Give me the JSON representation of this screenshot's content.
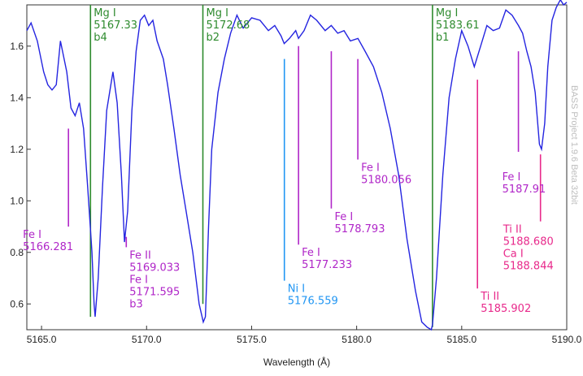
{
  "chart_data": {
    "type": "line",
    "xlabel": "Wavelength (Å)",
    "ylabel": "",
    "xlim": [
      5164.3,
      5190.0
    ],
    "ylim": [
      0.5,
      1.76
    ],
    "xticks": [
      5165.0,
      5170.0,
      5175.0,
      5180.0,
      5185.0,
      5190.0
    ],
    "xtick_labels": [
      "5165.0",
      "5170.0",
      "5175.0",
      "5180.0",
      "5185.0",
      "5190.0"
    ],
    "yticks": [
      0.6,
      0.8,
      1.0,
      1.2,
      1.4,
      1.6
    ],
    "ytick_labels": [
      "0.6",
      "0.8",
      "1.0",
      "1.2",
      "1.4",
      "1.6"
    ],
    "grid": false,
    "line_color": "#2424e0",
    "series": [
      {
        "x": [
          5164.3,
          5164.5,
          5164.8,
          5165.1,
          5165.3,
          5165.5,
          5165.7,
          5165.9,
          5166.2,
          5166.4,
          5166.6,
          5166.8,
          5167.0,
          5167.2,
          5167.4,
          5167.5,
          5167.55,
          5167.7,
          5167.9,
          5168.1,
          5168.4,
          5168.6,
          5168.8,
          5168.95,
          5169.1,
          5169.3,
          5169.5,
          5169.7,
          5169.9,
          5170.1,
          5170.3,
          5170.5,
          5170.8,
          5171.0,
          5171.3,
          5171.6,
          5171.9,
          5172.2,
          5172.5,
          5172.7,
          5172.8,
          5172.95,
          5173.1,
          5173.4,
          5173.7,
          5174.0,
          5174.3,
          5174.6,
          5175.0,
          5175.4,
          5175.8,
          5176.1,
          5176.4,
          5176.55,
          5176.8,
          5177.1,
          5177.23,
          5177.5,
          5177.8,
          5178.1,
          5178.5,
          5178.79,
          5179.1,
          5179.4,
          5179.7,
          5180.06,
          5180.4,
          5180.8,
          5181.2,
          5181.6,
          5182.0,
          5182.4,
          5182.8,
          5183.1,
          5183.35,
          5183.55,
          5183.61,
          5183.8,
          5184.1,
          5184.4,
          5184.7,
          5185.0,
          5185.3,
          5185.6,
          5185.9,
          5186.2,
          5186.5,
          5186.8,
          5187.1,
          5187.4,
          5187.7,
          5187.9,
          5188.1,
          5188.3,
          5188.5,
          5188.7,
          5188.8,
          5188.95,
          5189.1,
          5189.3,
          5189.5,
          5189.7,
          5189.85,
          5190.0
        ],
        "y": [
          1.66,
          1.69,
          1.62,
          1.5,
          1.45,
          1.43,
          1.45,
          1.62,
          1.5,
          1.36,
          1.33,
          1.38,
          1.28,
          1.05,
          0.8,
          0.6,
          0.55,
          0.7,
          1.05,
          1.35,
          1.5,
          1.38,
          1.1,
          0.84,
          0.96,
          1.35,
          1.58,
          1.7,
          1.72,
          1.68,
          1.7,
          1.62,
          1.55,
          1.45,
          1.28,
          1.1,
          0.95,
          0.8,
          0.6,
          0.53,
          0.55,
          0.9,
          1.2,
          1.42,
          1.55,
          1.65,
          1.72,
          1.67,
          1.71,
          1.7,
          1.66,
          1.68,
          1.64,
          1.61,
          1.63,
          1.66,
          1.63,
          1.66,
          1.72,
          1.7,
          1.66,
          1.68,
          1.65,
          1.66,
          1.62,
          1.63,
          1.58,
          1.52,
          1.42,
          1.28,
          1.1,
          0.85,
          0.65,
          0.53,
          0.51,
          0.5,
          0.52,
          0.7,
          1.1,
          1.4,
          1.55,
          1.66,
          1.6,
          1.52,
          1.6,
          1.68,
          1.66,
          1.67,
          1.74,
          1.72,
          1.68,
          1.65,
          1.58,
          1.52,
          1.42,
          1.22,
          1.2,
          1.3,
          1.52,
          1.7,
          1.75,
          1.78,
          1.76,
          1.77
        ]
      }
    ],
    "annotations": [
      {
        "lines": [
          "Mg I",
          "5167.33",
          "b4"
        ],
        "x": 5167.33,
        "y_top": 1.76,
        "y_bottom": 0.55,
        "color": "#2e8b2e",
        "side": "right"
      },
      {
        "lines": [
          "Mg I",
          "5172.68",
          "b2"
        ],
        "x": 5172.68,
        "y_top": 1.76,
        "y_bottom": 0.6,
        "color": "#2e8b2e",
        "side": "right"
      },
      {
        "lines": [
          "Mg I",
          "5183.61",
          "b1"
        ],
        "x": 5183.61,
        "y_top": 1.76,
        "y_bottom": 0.51,
        "color": "#2e8b2e",
        "side": "right"
      },
      {
        "lines": [
          "Fe I",
          "5166.281"
        ],
        "x": 5166.281,
        "y_top": 1.28,
        "y_bottom": 0.9,
        "color": "#b026c8",
        "side": "left"
      },
      {
        "lines": [
          "Fe II",
          "5169.033",
          "Fe I",
          "5171.595",
          "b3"
        ],
        "x": 5169.033,
        "y_top": 0.86,
        "y_bottom": 0.82,
        "color": "#b026c8",
        "side": "right"
      },
      {
        "lines": [
          "Ni I",
          "5176.559"
        ],
        "x": 5176.559,
        "y_top": 1.55,
        "y_bottom": 0.69,
        "color": "#2196f3",
        "side": "right"
      },
      {
        "lines": [
          "Fe I",
          "5177.233"
        ],
        "x": 5177.233,
        "y_top": 1.6,
        "y_bottom": 0.83,
        "color": "#b026c8",
        "side": "right"
      },
      {
        "lines": [
          "Fe I",
          "5178.793"
        ],
        "x": 5178.793,
        "y_top": 1.58,
        "y_bottom": 0.97,
        "color": "#b026c8",
        "side": "right"
      },
      {
        "lines": [
          "Fe I",
          "5180.056"
        ],
        "x": 5180.056,
        "y_top": 1.55,
        "y_bottom": 1.16,
        "color": "#b026c8",
        "side": "right"
      },
      {
        "lines": [
          "Ti II",
          "5185.902"
        ],
        "x": 5185.75,
        "y_top": 1.47,
        "y_bottom": 0.66,
        "color": "#e8298b",
        "side": "right"
      },
      {
        "lines": [
          "Ti II",
          "5188.680",
          "Ca I",
          "5188.844"
        ],
        "x": 5188.75,
        "y_top": 1.18,
        "y_bottom": 0.92,
        "color": "#e8298b",
        "side": "leftbelow"
      },
      {
        "lines": [
          "Fe I",
          "5187.91"
        ],
        "x": 5187.7,
        "y_top": 1.58,
        "y_bottom": 1.19,
        "color": "#b026c8",
        "side": "below"
      }
    ],
    "watermark": "BASS Project 1.9.6 Beta 32bit"
  }
}
